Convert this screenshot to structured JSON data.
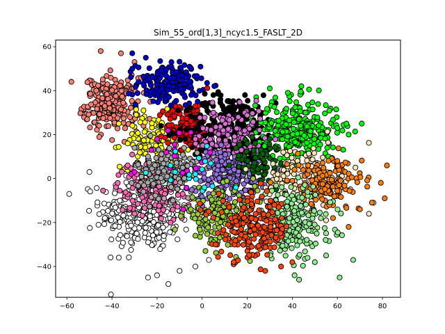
{
  "chart_data": {
    "type": "scatter",
    "title": "Sim_55_ord[1,3]_ncyc1.5_FASLT_2D",
    "xlabel": "",
    "ylabel": "",
    "xlim": [
      -65,
      88
    ],
    "ylim": [
      -54,
      63
    ],
    "xticks": [
      -60,
      -40,
      -20,
      0,
      20,
      40,
      60,
      80
    ],
    "yticks": [
      -40,
      -20,
      0,
      20,
      40,
      60
    ],
    "xtick_labels": [
      "−60",
      "−40",
      "−20",
      "0",
      "20",
      "40",
      "60",
      "80"
    ],
    "ytick_labels": [
      "−40",
      "−20",
      "0",
      "20",
      "40",
      "60"
    ],
    "grid": false,
    "legend": "none",
    "marker_edge_color": "#000000",
    "clusters": [
      {
        "color": "#ffffff",
        "center": [
          -25,
          -15
        ],
        "spread": [
          10,
          9
        ],
        "count": 330,
        "points": [
          [
            -59,
            -7
          ],
          [
            -50,
            3
          ],
          [
            -46,
            -21
          ],
          [
            -37,
            -36
          ],
          [
            -24,
            -45
          ],
          [
            -20,
            -44
          ],
          [
            -15,
            -48
          ],
          [
            -3,
            -40
          ],
          [
            3,
            -37
          ],
          [
            -10,
            -42
          ]
        ]
      },
      {
        "color": "#fa8072",
        "center": [
          -40,
          34
        ],
        "spread": [
          6,
          6
        ],
        "count": 220,
        "points": [
          [
            -58,
            44
          ],
          [
            -45,
            58
          ],
          [
            -36,
            57
          ],
          [
            -30,
            53
          ],
          [
            -51,
            27
          ],
          [
            -47,
            40
          ],
          [
            -26,
            24
          ],
          [
            -23,
            35
          ]
        ]
      },
      {
        "color": "#0000cd",
        "center": [
          -15,
          43
        ],
        "spread": [
          7,
          5
        ],
        "count": 160,
        "points": [
          [
            -31,
            57
          ],
          [
            -25,
            55
          ],
          [
            -18,
            49
          ],
          [
            -8,
            38
          ],
          [
            -2,
            35
          ],
          [
            -31,
            50
          ],
          [
            -9,
            47
          ]
        ]
      },
      {
        "color": "#ffff00",
        "center": [
          -22,
          17
        ],
        "spread": [
          7,
          6
        ],
        "count": 110,
        "points": [
          [
            -37,
            25
          ],
          [
            -26,
            31
          ],
          [
            -14,
            22
          ],
          [
            -10,
            12
          ],
          [
            -22,
            4
          ],
          [
            -33,
            16
          ]
        ]
      },
      {
        "color": "#ff0000",
        "center": [
          -6,
          24
        ],
        "spread": [
          5,
          5
        ],
        "count": 140,
        "points": [
          [
            -13,
            31
          ],
          [
            -3,
            33
          ],
          [
            1,
            21
          ],
          [
            -2,
            13
          ],
          [
            -9,
            13
          ]
        ]
      },
      {
        "color": "#000000",
        "center": [
          13,
          22
        ],
        "spread": [
          10,
          8
        ],
        "count": 280,
        "points": [
          [
            3,
            30
          ],
          [
            12,
            35
          ],
          [
            19,
            38
          ],
          [
            33,
            13
          ],
          [
            28,
            5
          ],
          [
            0,
            34
          ],
          [
            5,
            38
          ],
          [
            9,
            33
          ]
        ]
      },
      {
        "color": "#00ff00",
        "center": [
          42,
          22
        ],
        "spread": [
          9,
          7
        ],
        "count": 300,
        "points": [
          [
            24,
            37
          ],
          [
            30,
            41
          ],
          [
            38,
            39
          ],
          [
            60,
            23
          ],
          [
            65,
            20
          ],
          [
            50,
            2
          ],
          [
            56,
            10
          ],
          [
            44,
            42
          ],
          [
            64,
            25
          ]
        ]
      },
      {
        "color": "#da70d6",
        "center": [
          12,
          18
        ],
        "spread": [
          8,
          7
        ],
        "count": 130,
        "points": [
          [
            5,
            30
          ],
          [
            16,
            28
          ],
          [
            25,
            15
          ],
          [
            20,
            5
          ],
          [
            3,
            8
          ],
          [
            -3,
            18
          ]
        ]
      },
      {
        "color": "#ff69b4",
        "center": [
          -23,
          -4
        ],
        "spread": [
          7,
          6
        ],
        "count": 140,
        "points": [
          [
            -33,
            6
          ],
          [
            -30,
            -16
          ],
          [
            -14,
            -20
          ],
          [
            -9,
            -18
          ],
          [
            -6,
            -12
          ],
          [
            -29,
            2
          ]
        ]
      },
      {
        "color": "#a9a9a9",
        "center": [
          -15,
          3
        ],
        "spread": [
          7,
          6
        ],
        "count": 160,
        "points": [
          [
            -30,
            14
          ],
          [
            -24,
            10
          ],
          [
            -8,
            14
          ],
          [
            -5,
            -6
          ],
          [
            -13,
            -10
          ],
          [
            -2,
            4
          ]
        ]
      },
      {
        "color": "#9370db",
        "center": [
          12,
          1
        ],
        "spread": [
          8,
          6
        ],
        "count": 170,
        "points": [
          [
            1,
            9
          ],
          [
            8,
            12
          ],
          [
            25,
            8
          ],
          [
            27,
            -4
          ],
          [
            18,
            -9
          ],
          [
            3,
            -7
          ]
        ]
      },
      {
        "color": "#006400",
        "center": [
          26,
          8
        ],
        "spread": [
          6,
          5
        ],
        "count": 70,
        "points": [
          [
            20,
            16
          ],
          [
            30,
            18
          ],
          [
            35,
            7
          ],
          [
            26,
            -1
          ],
          [
            19,
            3
          ]
        ]
      },
      {
        "color": "#ffe4b5",
        "center": [
          45,
          1
        ],
        "spread": [
          8,
          7
        ],
        "count": 130,
        "points": [
          [
            60,
            6
          ],
          [
            68,
            5
          ],
          [
            76,
            -11
          ],
          [
            74,
            -16
          ],
          [
            55,
            -19
          ],
          [
            50,
            -23
          ],
          [
            36,
            12
          ]
        ]
      },
      {
        "color": "#ff7f00",
        "center": [
          55,
          -3
        ],
        "spread": [
          8,
          6
        ],
        "count": 160,
        "points": [
          [
            82,
            6
          ],
          [
            81,
            -9
          ],
          [
            70,
            -14
          ],
          [
            65,
            -22
          ],
          [
            47,
            6
          ],
          [
            60,
            8
          ],
          [
            40,
            -1
          ]
        ]
      },
      {
        "color": "#90ee90",
        "center": [
          40,
          -20
        ],
        "spread": [
          9,
          8
        ],
        "count": 230,
        "points": [
          [
            28,
            -7
          ],
          [
            50,
            -38
          ],
          [
            61,
            -45
          ],
          [
            67,
            -37
          ],
          [
            41,
            -44
          ],
          [
            43,
            -46
          ],
          [
            55,
            -35
          ]
        ]
      },
      {
        "color": "#9acd32",
        "center": [
          8,
          -17
        ],
        "spread": [
          8,
          6
        ],
        "count": 180,
        "points": [
          [
            0,
            -5
          ],
          [
            -3,
            -26
          ],
          [
            5,
            -29
          ],
          [
            20,
            -24
          ],
          [
            18,
            -10
          ],
          [
            -5,
            -14
          ]
        ]
      },
      {
        "color": "#ff4500",
        "center": [
          23,
          -23
        ],
        "spread": [
          8,
          7
        ],
        "count": 200,
        "points": [
          [
            12,
            -13
          ],
          [
            14,
            -38
          ],
          [
            28,
            -42
          ],
          [
            35,
            -40
          ],
          [
            40,
            -38
          ],
          [
            6,
            -30
          ],
          [
            32,
            -12
          ]
        ]
      },
      {
        "color": "#ff00ff",
        "center": [
          -10,
          10
        ],
        "spread": [
          8,
          7
        ],
        "count": 18,
        "points": [
          [
            -30,
            3
          ],
          [
            -20,
            18
          ],
          [
            -5,
            21
          ]
        ]
      },
      {
        "color": "#00ffff",
        "center": [
          -5,
          2
        ],
        "spread": [
          8,
          5
        ],
        "count": 14,
        "points": [
          [
            -12,
            3
          ],
          [
            1,
            -4
          ],
          [
            15,
            -4
          ],
          [
            -14,
            6
          ]
        ]
      }
    ]
  }
}
